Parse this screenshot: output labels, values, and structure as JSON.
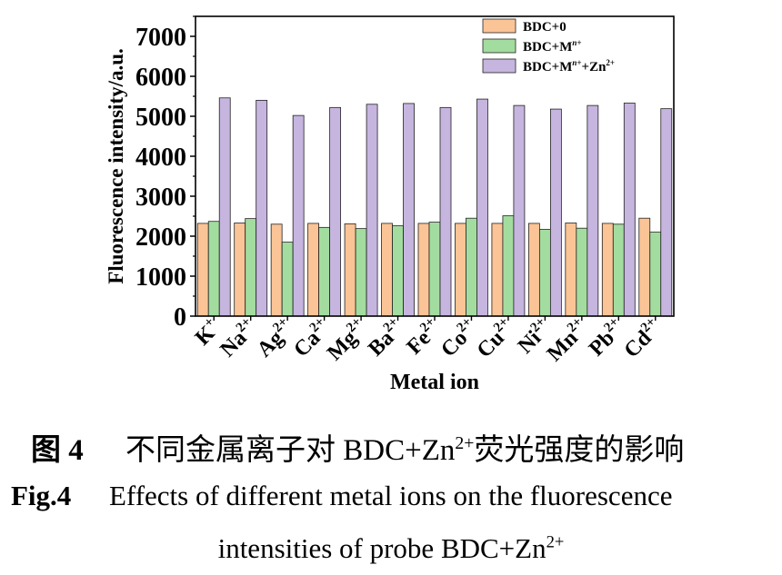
{
  "chart_data": {
    "type": "bar",
    "xlabel": "Metal ion",
    "ylabel": "Fluorescence intensity/a.u.",
    "ylim": [
      0,
      7500
    ],
    "yticks": [
      "0",
      "1000",
      "2000",
      "3000",
      "4000",
      "5000",
      "6000",
      "7000"
    ],
    "categories": [
      {
        "base": "K",
        "sup": "+"
      },
      {
        "base": "Na",
        "sup": "2+"
      },
      {
        "base": "Ag",
        "sup": "2+"
      },
      {
        "base": "Ca",
        "sup": "2+"
      },
      {
        "base": "Mg",
        "sup": "2+"
      },
      {
        "base": "Ba",
        "sup": "2+"
      },
      {
        "base": "Fe",
        "sup": "2+"
      },
      {
        "base": "Co",
        "sup": "2+"
      },
      {
        "base": "Cu",
        "sup": "2+"
      },
      {
        "base": "Ni",
        "sup": "2+"
      },
      {
        "base": "Mn",
        "sup": "2+"
      },
      {
        "base": "Pb",
        "sup": "2+"
      },
      {
        "base": "Cd",
        "sup": "2+"
      }
    ],
    "series": [
      {
        "name": "BDC+0",
        "name_sup": "",
        "name_rest": "",
        "color": "#fbc496",
        "values": [
          2320,
          2330,
          2300,
          2320,
          2310,
          2320,
          2320,
          2320,
          2320,
          2320,
          2330,
          2320,
          2450
        ]
      },
      {
        "name": "BDC+M",
        "name_sup": "n+",
        "name_rest": "",
        "color": "#a3dc9f",
        "values": [
          2370,
          2440,
          1850,
          2220,
          2190,
          2260,
          2350,
          2450,
          2510,
          2170,
          2200,
          2300,
          2100
        ]
      },
      {
        "name": "BDC+M",
        "name_sup": "n+",
        "name_rest": "+Zn",
        "name_rest_sup": "2+",
        "color": "#c6b5df",
        "values": [
          5460,
          5400,
          5020,
          5220,
          5300,
          5320,
          5220,
          5430,
          5270,
          5180,
          5270,
          5330,
          5190
        ]
      }
    ],
    "legend": "top-right",
    "grid": false
  },
  "caption": {
    "cn_label": "图 4",
    "cn_text": "不同金属离子对 BDC+Zn",
    "cn_sup": "2+",
    "cn_tail": "荧光强度的影响",
    "en_label": "Fig.4",
    "en_text": "Effects of different metal ions on the fluorescence",
    "en_text2": "intensities of probe BDC+Zn",
    "en_sup": "2+"
  }
}
